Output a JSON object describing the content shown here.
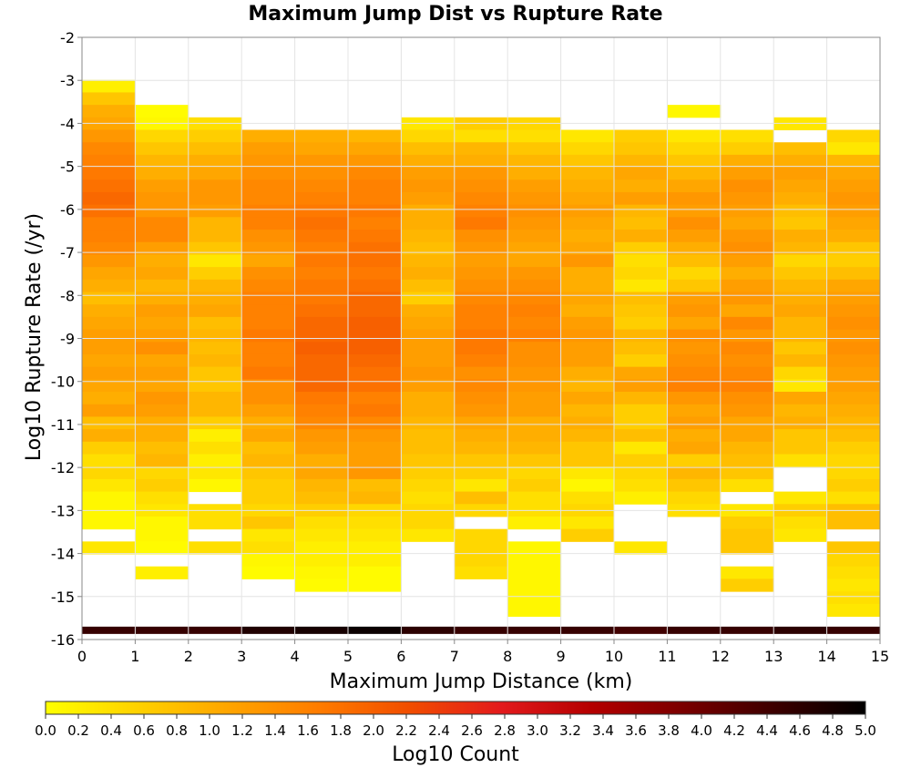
{
  "chart_data": {
    "type": "heatmap",
    "title": "Maximum Jump Dist vs Rupture Rate",
    "xlabel": "Maximum Jump Distance (km)",
    "ylabel": "Log10 Rupture Rate (/yr)",
    "xlim": [
      0,
      15
    ],
    "ylim": [
      -16,
      -2
    ],
    "x_ticks": [
      0,
      1,
      2,
      3,
      4,
      5,
      6,
      7,
      8,
      9,
      10,
      11,
      12,
      13,
      14,
      15
    ],
    "y_ticks": [
      -2,
      -3,
      -4,
      -5,
      -6,
      -7,
      -8,
      -9,
      -10,
      -11,
      -12,
      -13,
      -14,
      -15,
      -16
    ],
    "bin_width_x": 1,
    "bin_height_y": 0.29,
    "grid": true,
    "colorbar": {
      "label": "Log10 Count",
      "min": 0.0,
      "max": 5.0,
      "ticks": [
        "0.0",
        "0.2",
        "0.4",
        "0.6",
        "0.8",
        "1.0",
        "1.2",
        "1.4",
        "1.6",
        "1.8",
        "2.0",
        "2.2",
        "2.4",
        "2.6",
        "2.8",
        "3.0",
        "3.2",
        "3.4",
        "3.6",
        "3.8",
        "4.0",
        "4.2",
        "4.4",
        "4.6",
        "4.8",
        "5.0"
      ],
      "colors": [
        "#ffff00",
        "#ffd200",
        "#ffa500",
        "#ff7c00",
        "#f14d00",
        "#e31a1c",
        "#b40000",
        "#7a0000",
        "#3c0000",
        "#000000"
      ]
    },
    "columns": [
      {
        "x0": 0,
        "ymax": -2.99,
        "vals": [
          0.2,
          0.7,
          1.0,
          1.1,
          1.3,
          1.5,
          1.6,
          1.7,
          1.8,
          1.9,
          1.8,
          1.6,
          1.6,
          1.5,
          1.3,
          1.1,
          1.0,
          0.8,
          1.0,
          1.1,
          1.2,
          1.2,
          1.1,
          1.2,
          1.1,
          1.0,
          1.2,
          0.8,
          1.0,
          0.6,
          0.4,
          0.5,
          0.3,
          0.1,
          0.1,
          0.1,
          null,
          0.3,
          null,
          null,
          null,
          null,
          null,
          null,
          null,
          null
        ]
      },
      {
        "x0": 1,
        "ymax": -3.57,
        "vals": [
          0.05,
          0.1,
          0.5,
          0.7,
          0.9,
          1.0,
          1.2,
          1.3,
          1.3,
          1.5,
          1.5,
          1.2,
          1.0,
          1.1,
          0.9,
          1.0,
          1.2,
          1.1,
          1.2,
          1.4,
          1.1,
          1.2,
          1.1,
          1.3,
          1.2,
          1.0,
          1.0,
          0.8,
          0.9,
          0.5,
          0.6,
          0.4,
          0.3,
          0.1,
          0.1,
          0.05,
          null,
          0.2,
          null,
          null,
          null,
          null
        ]
      },
      {
        "x0": 2,
        "ymax": -3.86,
        "vals": [
          0.4,
          0.6,
          0.8,
          1.0,
          1.1,
          1.3,
          1.3,
          1.2,
          0.9,
          0.9,
          0.7,
          0.3,
          0.6,
          0.9,
          1.0,
          1.1,
          0.8,
          0.9,
          0.8,
          0.9,
          0.7,
          0.7,
          0.9,
          0.9,
          0.6,
          0.2,
          0.4,
          0.2,
          0.3,
          0.1,
          null,
          0.4,
          0.4,
          null,
          0.4,
          null,
          null,
          null,
          null,
          null,
          null
        ]
      },
      {
        "x0": 3,
        "ymax": -4.15,
        "vals": [
          1.0,
          1.2,
          1.3,
          1.4,
          1.5,
          1.5,
          1.6,
          1.6,
          1.4,
          1.3,
          1.1,
          1.4,
          1.5,
          1.6,
          1.6,
          1.6,
          1.7,
          1.6,
          1.6,
          1.7,
          1.4,
          1.4,
          1.2,
          1.0,
          1.1,
          0.8,
          0.9,
          0.7,
          0.6,
          0.6,
          0.5,
          0.7,
          0.3,
          0.4,
          0.1,
          0.05,
          null,
          null
        ]
      },
      {
        "x0": 4,
        "ymax": -4.15,
        "vals": [
          1.0,
          1.1,
          1.3,
          1.4,
          1.5,
          1.6,
          1.7,
          1.8,
          1.7,
          1.6,
          1.7,
          1.6,
          1.7,
          1.7,
          1.8,
          1.9,
          1.9,
          2.0,
          1.9,
          1.9,
          1.9,
          1.7,
          1.6,
          1.5,
          1.3,
          1.2,
          1.0,
          1.1,
          0.9,
          0.8,
          0.6,
          0.4,
          0.3,
          0.2,
          0.2,
          0.1,
          0.05,
          null
        ]
      },
      {
        "x0": 5,
        "ymax": -4.15,
        "vals": [
          0.9,
          1.1,
          1.3,
          1.5,
          1.6,
          1.6,
          1.7,
          1.6,
          1.7,
          1.8,
          1.8,
          1.7,
          1.8,
          1.9,
          1.9,
          2.0,
          2.0,
          2.0,
          1.9,
          1.8,
          1.8,
          1.6,
          1.7,
          1.5,
          1.3,
          1.2,
          1.2,
          1.3,
          0.8,
          0.9,
          0.5,
          0.4,
          0.3,
          0.2,
          0.2,
          0.05,
          0.05,
          null
        ]
      },
      {
        "x0": 6,
        "ymax": -3.86,
        "vals": [
          0.3,
          0.5,
          0.8,
          1.0,
          1.2,
          1.3,
          1.2,
          1.0,
          1.0,
          0.9,
          0.8,
          0.9,
          1.0,
          0.8,
          0.6,
          1.0,
          1.1,
          1.2,
          1.2,
          1.2,
          1.3,
          1.2,
          1.0,
          1.0,
          0.9,
          0.8,
          0.8,
          0.7,
          0.6,
          0.5,
          0.4,
          0.5,
          0.5,
          0.3,
          null,
          null,
          null,
          null,
          null,
          null,
          null
        ]
      },
      {
        "x0": 7,
        "ymax": -3.86,
        "vals": [
          0.6,
          0.4,
          0.9,
          1.0,
          1.3,
          1.4,
          1.5,
          1.6,
          1.7,
          1.4,
          1.3,
          1.2,
          1.3,
          1.4,
          1.5,
          1.6,
          1.6,
          1.7,
          1.7,
          1.6,
          1.4,
          1.5,
          1.4,
          1.3,
          1.1,
          1.0,
          0.9,
          0.7,
          0.6,
          0.3,
          0.8,
          0.5,
          null,
          0.5,
          0.5,
          0.5,
          0.4,
          null,
          null,
          null,
          null
        ]
      },
      {
        "x0": 8,
        "ymax": -3.86,
        "vals": [
          0.5,
          0.4,
          0.7,
          0.9,
          1.0,
          1.2,
          1.3,
          1.4,
          1.3,
          1.2,
          1.1,
          1.1,
          1.3,
          1.4,
          1.5,
          1.6,
          1.5,
          1.6,
          1.4,
          1.4,
          1.3,
          1.3,
          1.2,
          1.2,
          1.0,
          1.0,
          0.9,
          0.7,
          0.5,
          0.6,
          0.4,
          0.4,
          0.2,
          null,
          0.1,
          0.1,
          0.1,
          0.1,
          0.1,
          0.1,
          0.1
        ]
      },
      {
        "x0": 9,
        "ymax": -4.15,
        "vals": [
          0.3,
          0.5,
          0.7,
          0.9,
          1.0,
          1.1,
          1.2,
          1.1,
          1.0,
          1.1,
          1.3,
          1.0,
          1.0,
          1.1,
          1.0,
          1.2,
          1.3,
          1.2,
          1.2,
          1.0,
          0.9,
          1.1,
          0.9,
          1.0,
          0.9,
          0.7,
          0.7,
          0.3,
          0.1,
          0.4,
          0.5,
          0.3,
          0.6,
          null,
          null,
          null,
          null,
          null
        ]
      },
      {
        "x0": 10,
        "ymax": -4.15,
        "vals": [
          0.6,
          0.7,
          0.9,
          1.1,
          1.0,
          1.2,
          0.9,
          0.8,
          1.0,
          0.6,
          0.4,
          0.5,
          0.3,
          0.8,
          0.7,
          0.6,
          0.9,
          0.8,
          0.6,
          1.1,
          1.2,
          0.9,
          0.6,
          0.6,
          0.8,
          0.3,
          0.6,
          0.5,
          0.4,
          0.2,
          null,
          null,
          null,
          0.3,
          null,
          null,
          null,
          null
        ]
      },
      {
        "x0": 11,
        "ymax": -3.57,
        "vals": [
          0.1,
          null,
          0.3,
          0.5,
          0.7,
          0.9,
          1.1,
          1.3,
          1.2,
          1.4,
          1.2,
          1.0,
          0.8,
          0.5,
          0.7,
          1.2,
          1.3,
          1.1,
          1.4,
          1.3,
          1.4,
          1.5,
          1.6,
          1.3,
          1.1,
          1.2,
          1.0,
          1.1,
          0.6,
          0.9,
          0.7,
          0.5,
          0.4,
          null,
          null,
          null,
          null,
          null,
          null,
          null,
          null,
          null
        ]
      },
      {
        "x0": 12,
        "ymax": -4.15,
        "vals": [
          0.4,
          0.6,
          1.0,
          1.2,
          1.4,
          1.3,
          1.2,
          1.1,
          1.3,
          1.4,
          1.2,
          1.0,
          1.2,
          1.3,
          1.1,
          1.5,
          1.3,
          1.5,
          1.4,
          1.5,
          1.6,
          1.4,
          1.3,
          1.1,
          1.1,
          0.9,
          0.8,
          0.7,
          0.4,
          null,
          0.3,
          0.6,
          0.7,
          0.7,
          null,
          0.3,
          0.6,
          null
        ]
      },
      {
        "x0": 13,
        "ymax": -3.86,
        "vals": [
          0.3,
          null,
          0.8,
          1.0,
          1.2,
          1.1,
          1.0,
          0.8,
          0.7,
          1.0,
          0.9,
          0.5,
          0.7,
          0.9,
          1.0,
          1.1,
          0.9,
          0.9,
          0.7,
          0.9,
          0.5,
          0.3,
          1.1,
          0.9,
          1.0,
          0.7,
          0.7,
          0.4,
          null,
          null,
          0.3,
          0.6,
          0.4,
          0.3,
          null,
          null,
          null,
          null,
          null,
          null,
          null,
          0.3
        ]
      },
      {
        "x0": 14,
        "ymax": -4.15,
        "vals": [
          0.5,
          0.3,
          0.9,
          1.1,
          1.2,
          1.3,
          1.2,
          1.1,
          1.0,
          0.7,
          0.6,
          0.8,
          1.1,
          1.2,
          1.3,
          1.4,
          1.3,
          1.4,
          1.3,
          1.2,
          1.2,
          1.1,
          1.0,
          0.9,
          0.8,
          0.6,
          0.5,
          0.5,
          0.6,
          0.4,
          0.8,
          0.8,
          null,
          0.7,
          0.5,
          0.4,
          0.3,
          0.4,
          0.3,
          0.3
        ]
      }
    ],
    "floor_row": {
      "y": -15.9,
      "vals": [
        4.5,
        4.5,
        4.5,
        4.7,
        4.8,
        4.9,
        4.6,
        4.5,
        4.5,
        4.5,
        4.4,
        4.5,
        4.5,
        4.6,
        4.5
      ]
    }
  }
}
